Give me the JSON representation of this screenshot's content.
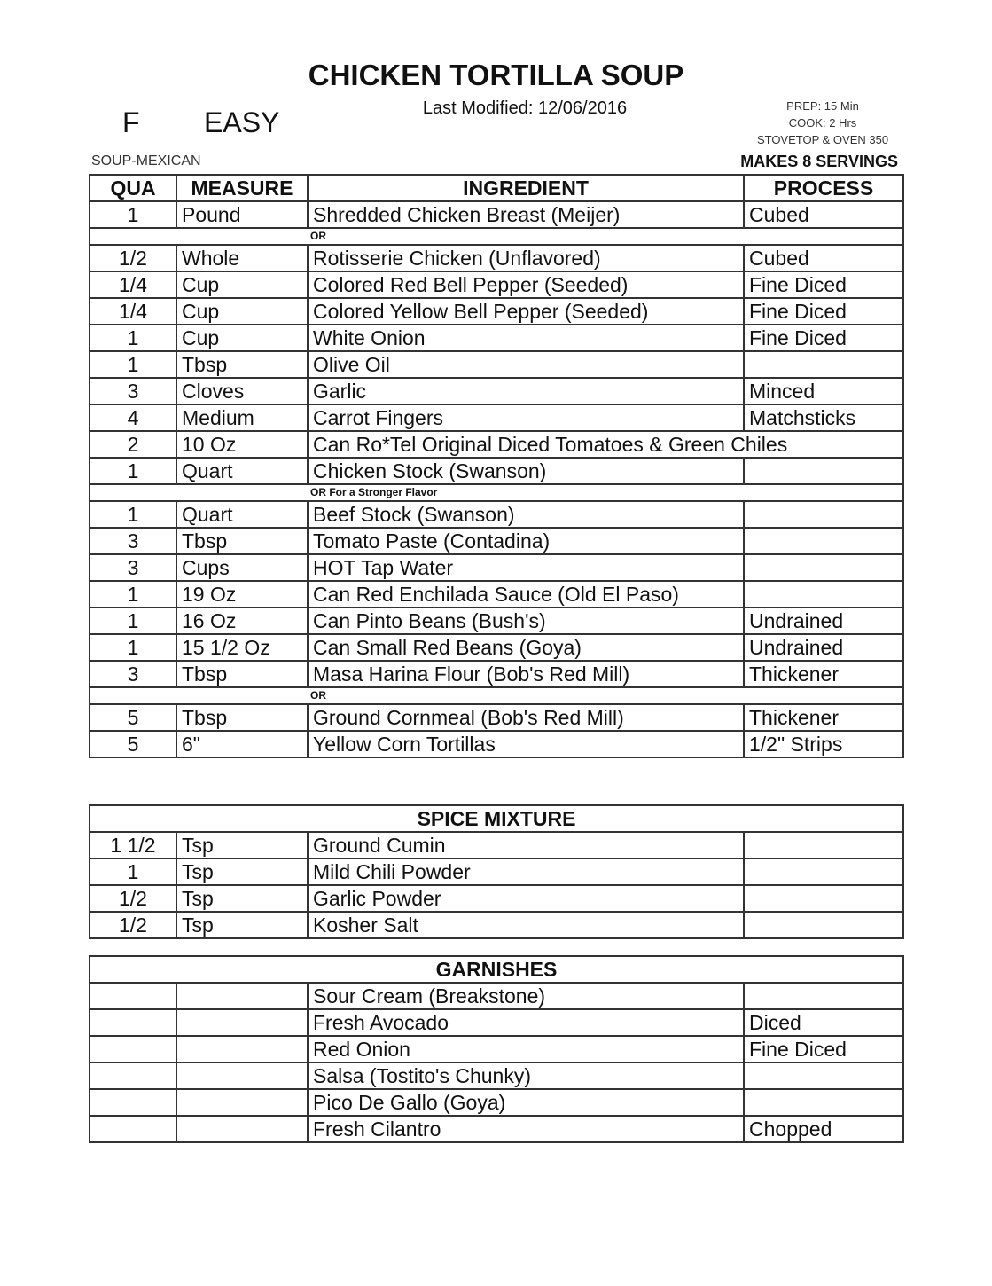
{
  "header": {
    "title": "CHICKEN TORTILLA SOUP",
    "modified": "Last Modified: 12/06/2016",
    "code": "F",
    "difficulty": "EASY",
    "prep": "PREP: 15 Min",
    "cook": "COOK: 2 Hrs",
    "method": "STOVETOP & OVEN 350",
    "category": "SOUP-MEXICAN",
    "servings": "MAKES 8 SERVINGS"
  },
  "main_table": {
    "columns": [
      "QUA",
      "MEASURE",
      "INGREDIENT",
      "PROCESS"
    ],
    "rows": [
      {
        "qua": "1",
        "measure": "Pound",
        "ingredient": "Shredded Chicken Breast (Meijer)",
        "process": "Cubed"
      },
      {
        "note": "OR"
      },
      {
        "qua": "1/2",
        "measure": "Whole",
        "ingredient": "Rotisserie Chicken (Unflavored)",
        "process": "Cubed"
      },
      {
        "qua": "1/4",
        "measure": "Cup",
        "ingredient": "Colored Red Bell Pepper (Seeded)",
        "process": "Fine Diced"
      },
      {
        "qua": "1/4",
        "measure": "Cup",
        "ingredient": "Colored Yellow Bell Pepper (Seeded)",
        "process": "Fine Diced"
      },
      {
        "qua": "1",
        "measure": "Cup",
        "ingredient": "White Onion",
        "process": "Fine Diced"
      },
      {
        "qua": "1",
        "measure": "Tbsp",
        "ingredient": "Olive Oil"
      },
      {
        "qua": "3",
        "measure": "Cloves",
        "ingredient": "Garlic",
        "process": "Minced"
      },
      {
        "qua": "4",
        "measure": "Medium",
        "ingredient": "Carrot Fingers",
        "process": "Matchsticks"
      },
      {
        "qua": "2",
        "measure": "10 Oz",
        "ingredient": "Can Ro*Tel Original Diced Tomatoes & Green Chiles"
      },
      {
        "qua": "1",
        "measure": "Quart",
        "ingredient": "Chicken Stock (Swanson)"
      },
      {
        "note": "OR For a Stronger Flavor"
      },
      {
        "qua": "1",
        "measure": "Quart",
        "ingredient": "Beef Stock (Swanson)"
      },
      {
        "qua": "3",
        "measure": "Tbsp",
        "ingredient": "Tomato Paste (Contadina)"
      },
      {
        "qua": "3",
        "measure": "Cups",
        "ingredient": "HOT Tap Water"
      },
      {
        "qua": "1",
        "measure": "19 Oz",
        "ingredient": "Can Red Enchilada Sauce (Old El Paso)"
      },
      {
        "qua": "1",
        "measure": "16 Oz",
        "ingredient": "Can Pinto Beans (Bush's)",
        "process": "Undrained"
      },
      {
        "qua": "1",
        "measure": "15 1/2 Oz",
        "ingredient": "Can Small Red Beans (Goya)",
        "process": "Undrained"
      },
      {
        "qua": "3",
        "measure": "Tbsp",
        "ingredient": "Masa Harina Flour (Bob's Red Mill)",
        "process": "Thickener"
      },
      {
        "note": "OR"
      },
      {
        "qua": "5",
        "measure": "Tbsp",
        "ingredient": "Ground Cornmeal (Bob's Red Mill)",
        "process": "Thickener"
      },
      {
        "qua": "5",
        "measure": "6\"",
        "ingredient": "Yellow Corn Tortillas",
        "process": "1/2\" Strips"
      }
    ]
  },
  "spice_table": {
    "title": "SPICE MIXTURE",
    "rows": [
      {
        "qua": "1 1/2",
        "measure": "Tsp",
        "ingredient": "Ground Cumin"
      },
      {
        "qua": "1",
        "measure": "Tsp",
        "ingredient": "Mild Chili Powder"
      },
      {
        "qua": "1/2",
        "measure": "Tsp",
        "ingredient": "Garlic Powder"
      },
      {
        "qua": "1/2",
        "measure": "Tsp",
        "ingredient": "Kosher Salt"
      }
    ]
  },
  "garnish_table": {
    "title": "GARNISHES",
    "rows": [
      {
        "ingredient": "Sour Cream (Breakstone)"
      },
      {
        "ingredient": "Fresh Avocado",
        "process": "Diced"
      },
      {
        "ingredient": "Red Onion",
        "process": "Fine Diced"
      },
      {
        "ingredient": "Salsa (Tostito's Chunky)"
      },
      {
        "ingredient": "Pico De Gallo (Goya)"
      },
      {
        "ingredient": "Fresh Cilantro",
        "process": "Chopped"
      }
    ]
  }
}
